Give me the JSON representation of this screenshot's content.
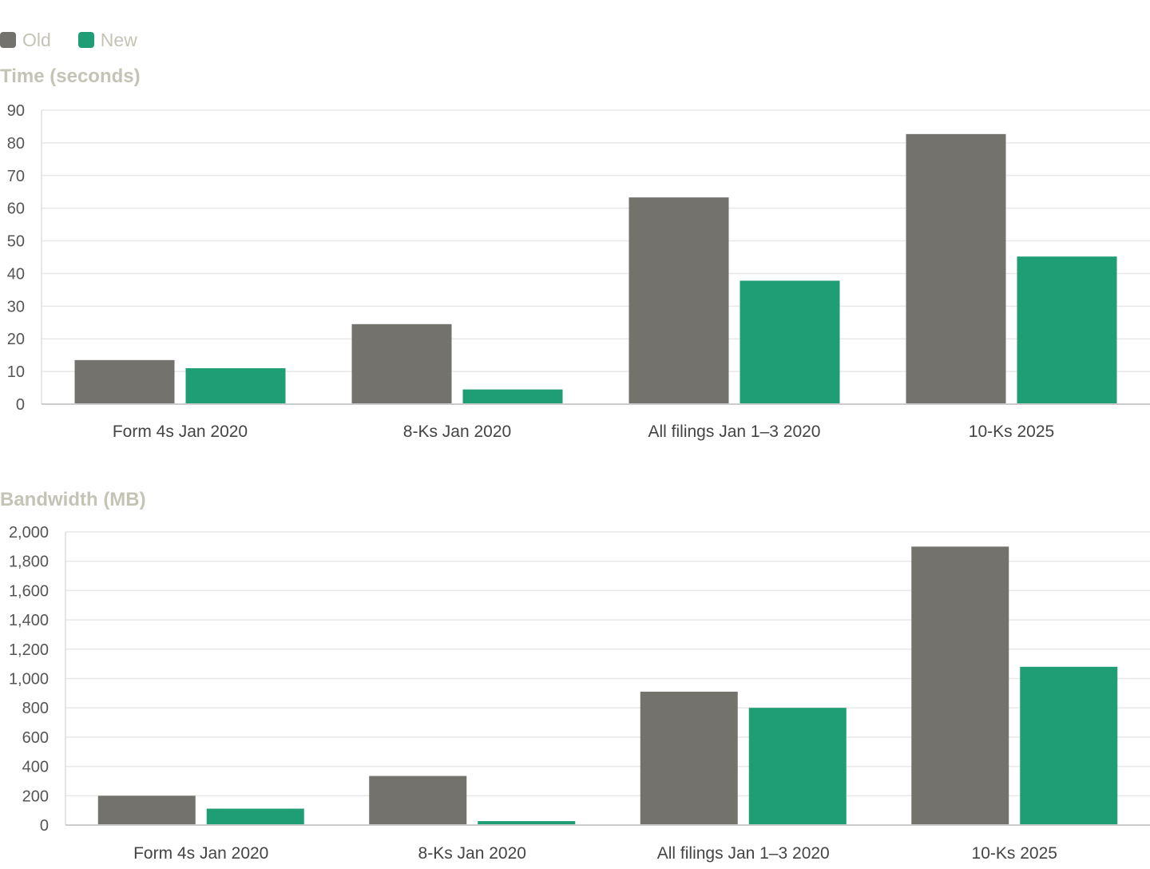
{
  "legend": [
    {
      "label": "Old",
      "color": "#73726c"
    },
    {
      "label": "New",
      "color": "#1f9e75"
    }
  ],
  "chart_data": [
    {
      "type": "bar",
      "title": "Time (seconds)",
      "categories": [
        "Form 4s Jan 2020",
        "8-Ks Jan 2020",
        "All filings Jan 1–3 2020",
        "10-Ks 2025"
      ],
      "series": [
        {
          "name": "Old",
          "color": "#73726c",
          "values": [
            13.5,
            24.5,
            63.3,
            82.7
          ]
        },
        {
          "name": "New",
          "color": "#1f9e75",
          "values": [
            11,
            4.5,
            37.8,
            45.2
          ]
        }
      ],
      "ylim": [
        0,
        90
      ],
      "yticks": [
        "0",
        "10",
        "20",
        "30",
        "40",
        "50",
        "60",
        "70",
        "80",
        "90"
      ],
      "grid": true,
      "legend": "top-left"
    },
    {
      "type": "bar",
      "title": "Bandwidth (MB)",
      "categories": [
        "Form 4s Jan 2020",
        "8-Ks Jan 2020",
        "All filings Jan 1–3 2020",
        "10-Ks 2025"
      ],
      "series": [
        {
          "name": "Old",
          "color": "#73726c",
          "values": [
            200,
            335,
            910,
            1900
          ]
        },
        {
          "name": "New",
          "color": "#1f9e75",
          "values": [
            112,
            27,
            800,
            1080
          ]
        }
      ],
      "ylim": [
        0,
        2000
      ],
      "yticks": [
        "0",
        "200",
        "400",
        "600",
        "800",
        "1,000",
        "1,200",
        "1,400",
        "1,600",
        "1,800",
        "2,000"
      ],
      "grid": true,
      "legend": "top-left"
    }
  ]
}
